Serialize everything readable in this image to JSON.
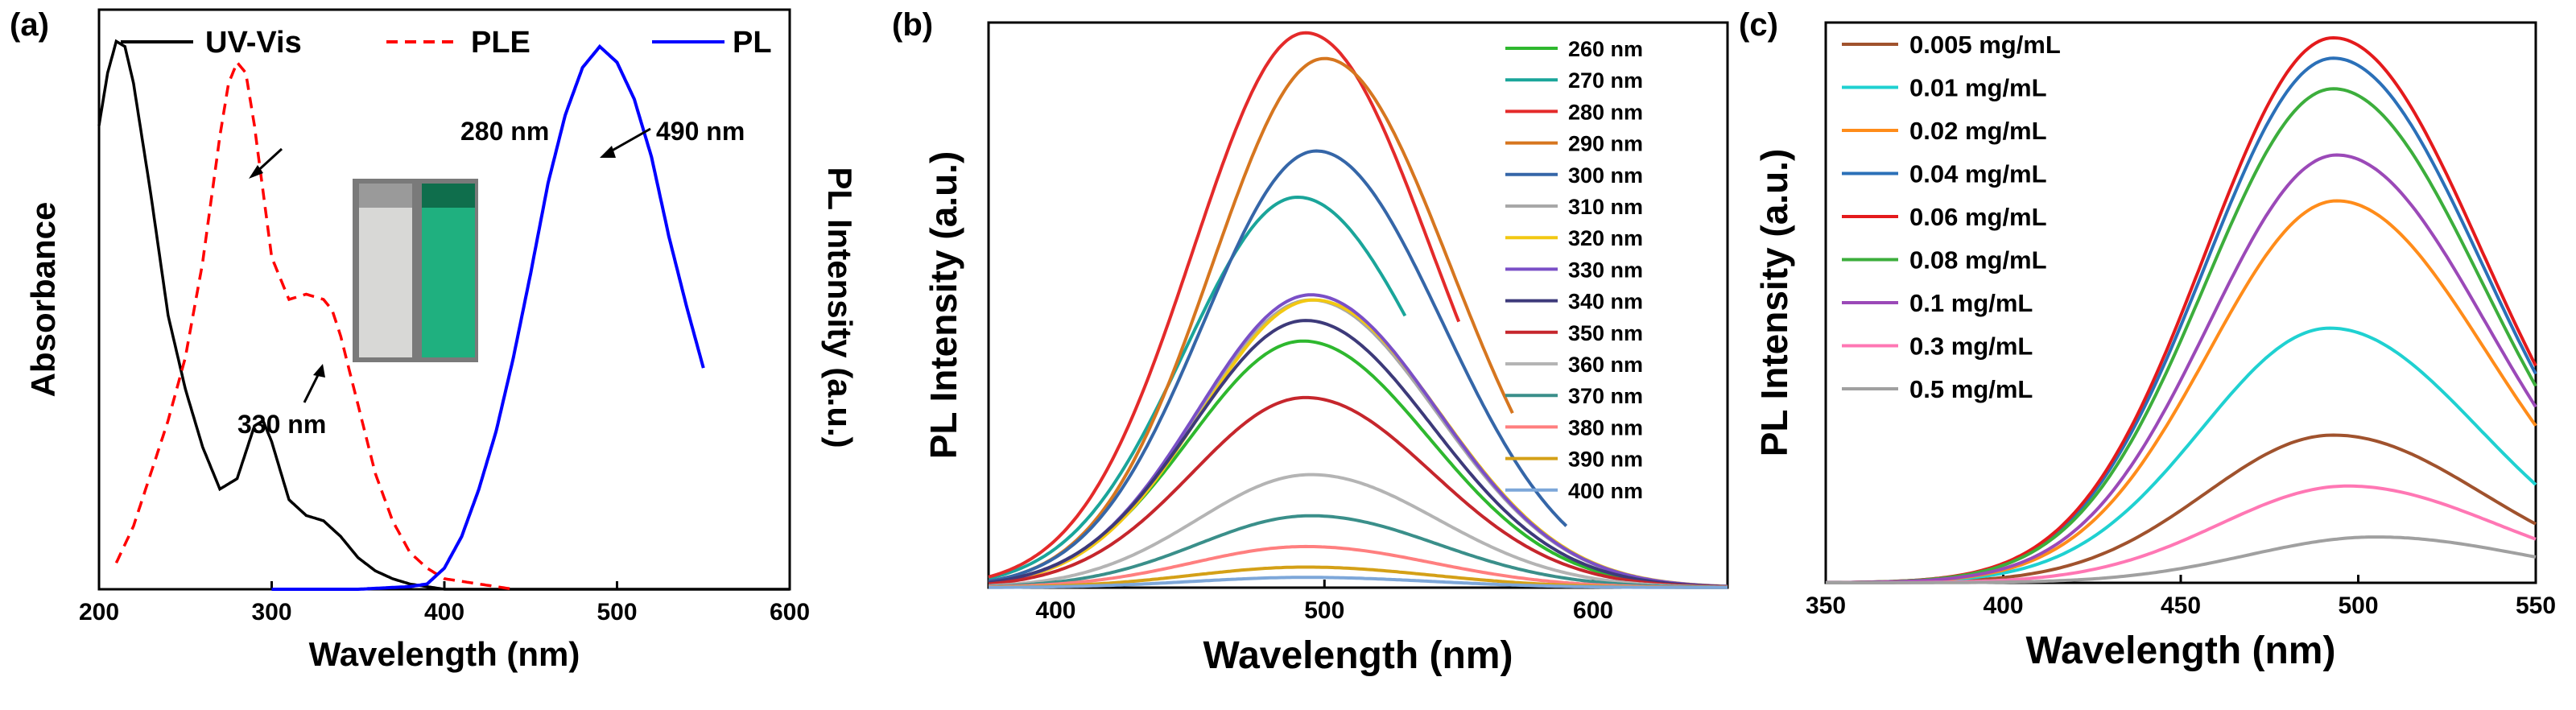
{
  "colors": {
    "black": "#000000",
    "red": "#ff0000",
    "blue": "#0000ff",
    "gridless_axis": "#000000"
  },
  "chart_data": [
    {
      "panel_label": "(a)",
      "type": "line",
      "xlabel": "Wavelength (nm)",
      "ylabel": "Absorbance",
      "ylabel_right": "PL Intensity (a.u.)",
      "xlim": [
        200,
        600
      ],
      "ylim": [
        0,
        1.1
      ],
      "xticks": [
        200,
        300,
        400,
        500,
        600
      ],
      "grid": false,
      "legend": "top",
      "inset": "photo of two cuvettes: clear (left) and green-fluorescing (right)",
      "annotations": [
        {
          "text": "280 nm",
          "x": 280,
          "y": 1.0
        },
        {
          "text": "330 nm",
          "x": 330,
          "y": 0.6
        },
        {
          "text": "490 nm",
          "x": 490,
          "y": 1.05
        }
      ],
      "series": [
        {
          "name": "UV-Vis",
          "color": "#000000",
          "style": "solid",
          "x": [
            200,
            205,
            210,
            215,
            220,
            230,
            240,
            250,
            260,
            270,
            280,
            290,
            295,
            300,
            310,
            320,
            330,
            340,
            350,
            360,
            370,
            380,
            390,
            400,
            450,
            500,
            550,
            600
          ],
          "y": [
            0.88,
            0.98,
            1.04,
            1.03,
            0.96,
            0.75,
            0.52,
            0.38,
            0.27,
            0.19,
            0.21,
            0.31,
            0.32,
            0.28,
            0.17,
            0.14,
            0.13,
            0.1,
            0.06,
            0.035,
            0.02,
            0.01,
            0.005,
            0.0,
            0.0,
            0.0,
            0.0,
            0.0
          ]
        },
        {
          "name": "PLE",
          "color": "#ff0000",
          "style": "dashed",
          "x": [
            210,
            220,
            230,
            240,
            250,
            260,
            270,
            275,
            280,
            285,
            290,
            300,
            310,
            320,
            330,
            335,
            340,
            350,
            360,
            370,
            380,
            390,
            400,
            420,
            440
          ],
          "y": [
            0.05,
            0.12,
            0.22,
            0.32,
            0.44,
            0.62,
            0.86,
            0.96,
            1.0,
            0.98,
            0.88,
            0.63,
            0.55,
            0.56,
            0.55,
            0.53,
            0.48,
            0.35,
            0.22,
            0.13,
            0.07,
            0.04,
            0.02,
            0.01,
            0.0
          ]
        },
        {
          "name": "PL",
          "color": "#0000ff",
          "style": "solid",
          "x": [
            300,
            350,
            380,
            390,
            400,
            410,
            420,
            430,
            440,
            450,
            460,
            470,
            480,
            490,
            500,
            510,
            520,
            530,
            540,
            550
          ],
          "y": [
            0.0,
            0.0,
            0.005,
            0.01,
            0.04,
            0.1,
            0.19,
            0.3,
            0.44,
            0.6,
            0.77,
            0.9,
            0.99,
            1.03,
            1.0,
            0.93,
            0.82,
            0.67,
            0.54,
            0.42
          ]
        }
      ]
    },
    {
      "panel_label": "(b)",
      "type": "line",
      "xlabel": "Wavelength (nm)",
      "ylabel": "PL Intensity (a.u.)",
      "xlim": [
        375,
        650
      ],
      "ylim": [
        0,
        1.1
      ],
      "xticks": [
        400,
        500,
        600
      ],
      "grid": false,
      "legend": "top-right",
      "series_model": "gaussian-like emission curves; values give peak wavelength (nm), relative peak height, and the last wavelength plotted",
      "series": [
        {
          "name": "260 nm",
          "color": "#2eb82e",
          "peak_x": 492,
          "peak_y": 0.48,
          "end_x": 650
        },
        {
          "name": "270 nm",
          "color": "#1aa59a",
          "peak_x": 490,
          "peak_y": 0.76,
          "end_x": 530
        },
        {
          "name": "280 nm",
          "color": "#e42a2a",
          "peak_x": 493,
          "peak_y": 1.08,
          "end_x": 550
        },
        {
          "name": "290 nm",
          "color": "#d6761f",
          "peak_x": 500,
          "peak_y": 1.03,
          "end_x": 570
        },
        {
          "name": "300 nm",
          "color": "#3566a8",
          "peak_x": 497,
          "peak_y": 0.85,
          "end_x": 590
        },
        {
          "name": "310 nm",
          "color": "#a8a8a8",
          "peak_x": 495,
          "peak_y": 0.56,
          "end_x": 650
        },
        {
          "name": "320 nm",
          "color": "#f2c812",
          "peak_x": 496,
          "peak_y": 0.56,
          "end_x": 650
        },
        {
          "name": "330 nm",
          "color": "#7a4fc7",
          "peak_x": 495,
          "peak_y": 0.57,
          "end_x": 650
        },
        {
          "name": "340 nm",
          "color": "#3d3a7a",
          "peak_x": 493,
          "peak_y": 0.52,
          "end_x": 650
        },
        {
          "name": "350 nm",
          "color": "#c6262c",
          "peak_x": 493,
          "peak_y": 0.37,
          "end_x": 650
        },
        {
          "name": "360 nm",
          "color": "#b4b4b4",
          "peak_x": 495,
          "peak_y": 0.22,
          "end_x": 650
        },
        {
          "name": "370 nm",
          "color": "#3a8f8a",
          "peak_x": 495,
          "peak_y": 0.14,
          "end_x": 650
        },
        {
          "name": "380 nm",
          "color": "#ff7f7f",
          "peak_x": 493,
          "peak_y": 0.08,
          "end_x": 650
        },
        {
          "name": "390 nm",
          "color": "#d4a017",
          "peak_x": 493,
          "peak_y": 0.04,
          "end_x": 650
        },
        {
          "name": "400 nm",
          "color": "#7da7d9",
          "peak_x": 493,
          "peak_y": 0.02,
          "end_x": 650
        }
      ]
    },
    {
      "panel_label": "(c)",
      "type": "line",
      "xlabel": "Wavelength (nm)",
      "ylabel": "PL Intensity (a.u.)",
      "xlim": [
        350,
        550
      ],
      "ylim": [
        0,
        1.1
      ],
      "xticks": [
        350,
        400,
        450,
        500,
        550
      ],
      "grid": false,
      "legend": "top-left",
      "series_model": "gaussian-like emission curves; values give peak wavelength (nm) and relative peak height",
      "series": [
        {
          "name": "0.005 mg/mL",
          "color": "#a0522d",
          "peak_x": 493,
          "peak_y": 0.29
        },
        {
          "name": "0.01 mg/mL",
          "color": "#1fd1d1",
          "peak_x": 492,
          "peak_y": 0.5
        },
        {
          "name": "0.02 mg/mL",
          "color": "#ff8c1a",
          "peak_x": 494,
          "peak_y": 0.75
        },
        {
          "name": "0.04 mg/mL",
          "color": "#2b70b8",
          "peak_x": 493,
          "peak_y": 1.03
        },
        {
          "name": "0.06 mg/mL",
          "color": "#e41a1c",
          "peak_x": 493,
          "peak_y": 1.07
        },
        {
          "name": "0.08 mg/mL",
          "color": "#3cae3c",
          "peak_x": 493,
          "peak_y": 0.97
        },
        {
          "name": "0.1 mg/mL",
          "color": "#9b49b8",
          "peak_x": 494,
          "peak_y": 0.84
        },
        {
          "name": "0.3 mg/mL",
          "color": "#ff77b4",
          "peak_x": 497,
          "peak_y": 0.19
        },
        {
          "name": "0.5 mg/mL",
          "color": "#a0a0a0",
          "peak_x": 505,
          "peak_y": 0.09
        }
      ]
    }
  ]
}
